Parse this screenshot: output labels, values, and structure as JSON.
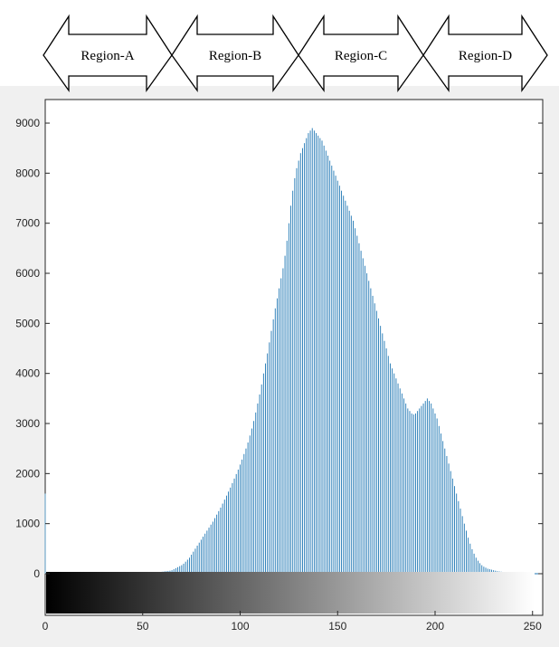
{
  "regions": [
    "Region-A",
    "Region-B",
    "Region-C",
    "Region-D"
  ],
  "colors": {
    "bar": "#1f77b4",
    "bar_light": "#5fa8d3",
    "figure_background": "#f0f0f0",
    "axes_background": "#ffffff",
    "arrow_fill": "#ffffff",
    "arrow_stroke": "#000000"
  },
  "chart_data": {
    "type": "bar",
    "title": "",
    "xlabel": "",
    "ylabel": "",
    "xlim": [
      0,
      255
    ],
    "ylim": [
      -1000,
      9400
    ],
    "grid": false,
    "x_ticks": [
      0,
      50,
      100,
      150,
      200,
      250
    ],
    "y_ticks": [
      0,
      1000,
      2000,
      3000,
      4000,
      5000,
      6000,
      7000,
      8000,
      9000
    ],
    "colorbar": "grayscale gradient from black (0) to white (255) below the zero line",
    "bin_width": 1,
    "values_note": "pixel counts per intensity level 0..255",
    "values": [
      1600,
      10,
      5,
      5,
      5,
      5,
      5,
      5,
      5,
      5,
      5,
      5,
      5,
      5,
      5,
      5,
      5,
      5,
      5,
      5,
      5,
      5,
      5,
      5,
      5,
      5,
      5,
      5,
      5,
      5,
      5,
      5,
      5,
      5,
      5,
      5,
      5,
      5,
      5,
      5,
      5,
      5,
      5,
      5,
      5,
      5,
      5,
      5,
      5,
      5,
      5,
      5,
      5,
      5,
      10,
      15,
      20,
      25,
      30,
      35,
      40,
      45,
      50,
      55,
      60,
      70,
      90,
      110,
      130,
      150,
      170,
      200,
      240,
      280,
      320,
      380,
      440,
      500,
      560,
      620,
      680,
      740,
      800,
      860,
      920,
      980,
      1040,
      1110,
      1180,
      1250,
      1320,
      1400,
      1480,
      1560,
      1640,
      1720,
      1810,
      1900,
      1990,
      2080,
      2180,
      2280,
      2390,
      2500,
      2620,
      2760,
      2900,
      3050,
      3220,
      3400,
      3580,
      3780,
      4000,
      4200,
      4400,
      4620,
      4850,
      5080,
      5300,
      5500,
      5700,
      5900,
      6100,
      6350,
      6650,
      7000,
      7350,
      7650,
      7900,
      8100,
      8250,
      8400,
      8500,
      8600,
      8700,
      8800,
      8850,
      8900,
      8850,
      8800,
      8750,
      8700,
      8650,
      8550,
      8450,
      8350,
      8250,
      8150,
      8050,
      7950,
      7850,
      7750,
      7650,
      7550,
      7450,
      7350,
      7250,
      7150,
      7050,
      6900,
      6750,
      6600,
      6450,
      6300,
      6150,
      6000,
      5850,
      5700,
      5550,
      5400,
      5250,
      5100,
      4950,
      4800,
      4650,
      4500,
      4350,
      4200,
      4100,
      4000,
      3900,
      3800,
      3700,
      3600,
      3500,
      3400,
      3300,
      3250,
      3200,
      3180,
      3200,
      3250,
      3300,
      3350,
      3400,
      3450,
      3500,
      3450,
      3400,
      3300,
      3200,
      3100,
      2950,
      2800,
      2650,
      2500,
      2350,
      2200,
      2050,
      1900,
      1750,
      1600,
      1450,
      1300,
      1150,
      1000,
      860,
      720,
      600,
      490,
      400,
      320,
      260,
      210,
      170,
      140,
      120,
      100,
      90,
      80,
      70,
      60,
      50,
      45,
      40,
      35,
      30,
      30,
      25,
      25,
      20,
      20,
      20,
      15,
      15,
      15,
      15,
      10,
      10,
      10,
      10,
      10
    ]
  }
}
